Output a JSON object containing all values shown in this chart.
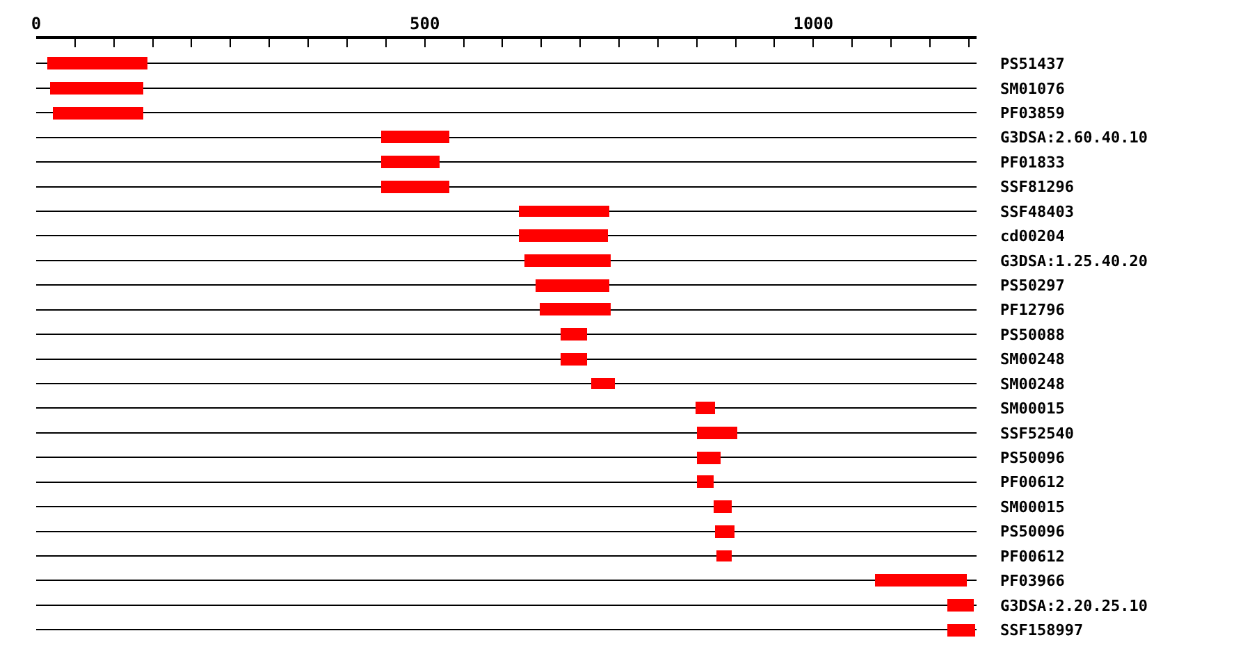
{
  "chart_data": {
    "type": "bar",
    "orientation": "horizontal",
    "categories": [
      "PS51437",
      "SM01076",
      "PF03859",
      "G3DSA:2.60.40.10",
      "PF01833",
      "SSF81296",
      "SSF48403",
      "cd00204",
      "G3DSA:1.25.40.20",
      "PS50297",
      "PF12796",
      "PS50088",
      "SM00248",
      "SM00248",
      "SM00015",
      "SSF52540",
      "PS50096",
      "PF00612",
      "SM00015",
      "PS50096",
      "PF00612",
      "PF03966",
      "G3DSA:2.20.25.10",
      "SSF158997"
    ],
    "base": [
      14,
      17,
      21,
      444,
      444,
      444,
      621,
      621,
      628,
      643,
      648,
      675,
      675,
      714,
      849,
      851,
      851,
      851,
      872,
      874,
      876,
      1080,
      1173,
      1173
    ],
    "values": [
      129,
      121,
      117,
      88,
      75,
      88,
      117,
      115,
      112,
      95,
      92,
      34,
      34,
      31,
      25,
      51,
      30,
      21,
      23,
      25,
      19,
      118,
      34,
      36
    ],
    "color": "#ff0000",
    "xlim": [
      0,
      1210
    ],
    "xticks": [
      0,
      {
        "value": 50,
        "label": null
      },
      {
        "value": 100,
        "label": null
      },
      {
        "value": 150,
        "label": null
      },
      {
        "value": 200,
        "label": null
      },
      {
        "value": 250,
        "label": null
      },
      {
        "value": 300,
        "label": null
      },
      {
        "value": 350,
        "label": null
      },
      {
        "value": 400,
        "label": null
      },
      {
        "value": 450,
        "label": null
      },
      500,
      {
        "value": 550,
        "label": null
      },
      {
        "value": 600,
        "label": null
      },
      {
        "value": 650,
        "label": null
      },
      {
        "value": 700,
        "label": null
      },
      {
        "value": 750,
        "label": null
      },
      {
        "value": 800,
        "label": null
      },
      {
        "value": 850,
        "label": null
      },
      {
        "value": 900,
        "label": null
      },
      {
        "value": 950,
        "label": null
      },
      1000,
      {
        "value": 1050,
        "label": null
      },
      {
        "value": 1100,
        "label": null
      },
      {
        "value": 1150,
        "label": null
      },
      {
        "value": 1200,
        "label": null
      }
    ],
    "grid": "y"
  }
}
